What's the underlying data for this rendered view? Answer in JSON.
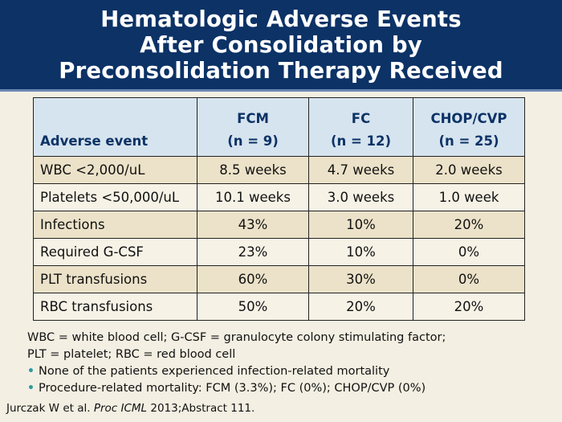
{
  "title_lines": [
    "Hematologic Adverse Events",
    "After Consolidation by",
    "Preconsolidation Therapy Received"
  ],
  "table": {
    "headers": [
      {
        "line1": "",
        "line2": "Adverse event"
      },
      {
        "line1": "FCM",
        "line2": "(n = 9)"
      },
      {
        "line1": "FC",
        "line2": "(n = 12)"
      },
      {
        "line1": "CHOP/CVP",
        "line2": "(n = 25)"
      }
    ],
    "rows": [
      [
        "WBC <2,000/uL",
        "8.5 weeks",
        "4.7 weeks",
        "2.0 weeks"
      ],
      [
        "Platelets <50,000/uL",
        "10.1 weeks",
        "3.0 weeks",
        "1.0 week"
      ],
      [
        "Infections",
        "43%",
        "10%",
        "20%"
      ],
      [
        "Required G-CSF",
        "23%",
        "10%",
        "0%"
      ],
      [
        "PLT transfusions",
        "60%",
        "30%",
        "0%"
      ],
      [
        "RBC transfusions",
        "50%",
        "20%",
        "20%"
      ]
    ]
  },
  "notes": {
    "abbrev_line1": "WBC = white blood cell; G-CSF = granulocyte colony stimulating factor;",
    "abbrev_line2": "PLT = platelet; RBC = red blood cell",
    "bullets": [
      "None of the patients experienced infection-related mortality",
      "Procedure-related mortality: FCM (3.3%); FC (0%); CHOP/CVP (0%)"
    ]
  },
  "reference": {
    "authors": "Jurczak W et al.",
    "journal": "Proc ICML",
    "details": "2013;Abstract 111."
  },
  "colors": {
    "header_bg": "#0c3266",
    "background": "#f3efe2",
    "table_header_bg": "#d6e4ef",
    "row_shaded": "#ece2c9",
    "bullet": "#2e9aa3"
  }
}
